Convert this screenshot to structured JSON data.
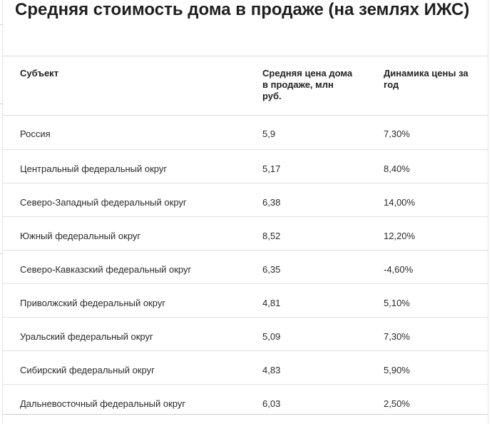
{
  "title": "Средняя стоимость дома в продаже (на землях ИЖС)",
  "table": {
    "headers": [
      "Субъект",
      "Средняя цена дома в продаже, млн руб.",
      "Динамика цены за год"
    ],
    "rows": [
      [
        "Россия",
        "5,9",
        "7,30%"
      ],
      [
        "Центральный федеральный округ",
        "5,17",
        "8,40%"
      ],
      [
        "Северо-Западный федеральный округ",
        "6,38",
        "14,00%"
      ],
      [
        "Южный федеральный округ",
        "8,52",
        "12,20%"
      ],
      [
        "Северо-Кавказский федеральный округ",
        "6,35",
        "-4,60%"
      ],
      [
        "Приволжский федеральный округ",
        "4,81",
        "5,10%"
      ],
      [
        "Уральский федеральный округ",
        "5,09",
        "7,30%"
      ],
      [
        "Сибирский федеральный округ",
        "4,83",
        "5,90%"
      ],
      [
        "Дальневосточный федеральный округ",
        "6,03",
        "2,50%"
      ]
    ]
  }
}
